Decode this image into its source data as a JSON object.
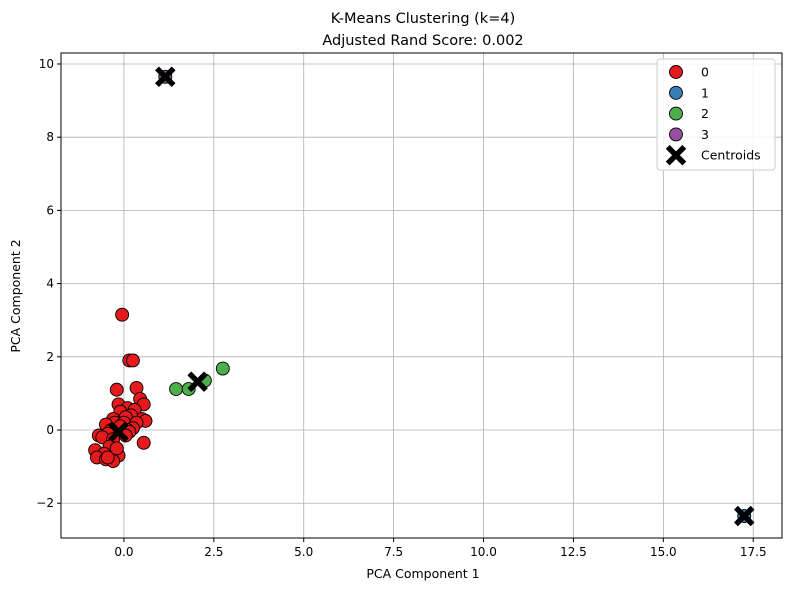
{
  "chart_data": {
    "type": "scatter",
    "title": "K-Means Clustering (k=4)",
    "subtitle": "Adjusted Rand Score: 0.002",
    "xlabel": "PCA Component 1",
    "ylabel": "PCA Component 2",
    "xlim": [
      -1.75,
      18.3
    ],
    "ylim": [
      -2.95,
      10.3
    ],
    "xticks": [
      0.0,
      2.5,
      5.0,
      7.5,
      10.0,
      12.5,
      15.0,
      17.5
    ],
    "xtick_labels": [
      "0.0",
      "2.5",
      "5.0",
      "7.5",
      "10.0",
      "12.5",
      "15.0",
      "17.5"
    ],
    "yticks": [
      -2,
      0,
      2,
      4,
      6,
      8,
      10
    ],
    "ytick_labels": [
      "−2",
      "0",
      "2",
      "4",
      "6",
      "8",
      "10"
    ],
    "grid": true,
    "legend_position": "top-right",
    "series": [
      {
        "name": "0",
        "color": "#e41a1c",
        "points": [
          [
            -0.05,
            3.15
          ],
          [
            0.15,
            1.9
          ],
          [
            0.25,
            1.9
          ],
          [
            -0.2,
            1.1
          ],
          [
            0.35,
            1.15
          ],
          [
            0.45,
            0.85
          ],
          [
            0.55,
            0.7
          ],
          [
            -0.15,
            0.7
          ],
          [
            0.1,
            0.6
          ],
          [
            0.3,
            0.55
          ],
          [
            -0.1,
            0.5
          ],
          [
            0.5,
            0.3
          ],
          [
            0.6,
            0.25
          ],
          [
            0.2,
            0.4
          ],
          [
            0.05,
            0.35
          ],
          [
            -0.3,
            0.3
          ],
          [
            -0.25,
            0.2
          ],
          [
            -0.5,
            0.15
          ],
          [
            0.0,
            0.2
          ],
          [
            0.35,
            0.2
          ],
          [
            -0.1,
            0.1
          ],
          [
            0.25,
            0.05
          ],
          [
            0.1,
            0.0
          ],
          [
            -0.35,
            0.0
          ],
          [
            0.15,
            -0.05
          ],
          [
            -0.45,
            -0.1
          ],
          [
            -0.7,
            -0.15
          ],
          [
            -0.6,
            -0.2
          ],
          [
            -0.3,
            -0.25
          ],
          [
            0.55,
            -0.35
          ],
          [
            -0.4,
            -0.45
          ],
          [
            -0.8,
            -0.55
          ],
          [
            -0.55,
            -0.65
          ],
          [
            -0.15,
            -0.7
          ],
          [
            -0.75,
            -0.75
          ],
          [
            -0.5,
            -0.8
          ],
          [
            -0.3,
            -0.85
          ],
          [
            -0.45,
            -0.75
          ],
          [
            -0.2,
            -0.5
          ],
          [
            0.05,
            -0.15
          ]
        ]
      },
      {
        "name": "1",
        "color": "#377eb8",
        "points": [
          [
            17.25,
            -2.35
          ]
        ]
      },
      {
        "name": "2",
        "color": "#4daf4a",
        "points": [
          [
            1.45,
            1.12
          ],
          [
            1.8,
            1.12
          ],
          [
            2.25,
            1.35
          ],
          [
            2.75,
            1.68
          ]
        ]
      },
      {
        "name": "3",
        "color": "#984ea3",
        "points": [
          [
            1.15,
            9.65
          ]
        ]
      }
    ],
    "centroids": {
      "name": "Centroids",
      "color": "#000000",
      "points": [
        [
          1.15,
          9.65
        ],
        [
          17.25,
          -2.35
        ],
        [
          2.05,
          1.32
        ],
        [
          -0.15,
          -0.05
        ]
      ]
    },
    "legend_entries": [
      "0",
      "1",
      "2",
      "3",
      "Centroids"
    ]
  }
}
